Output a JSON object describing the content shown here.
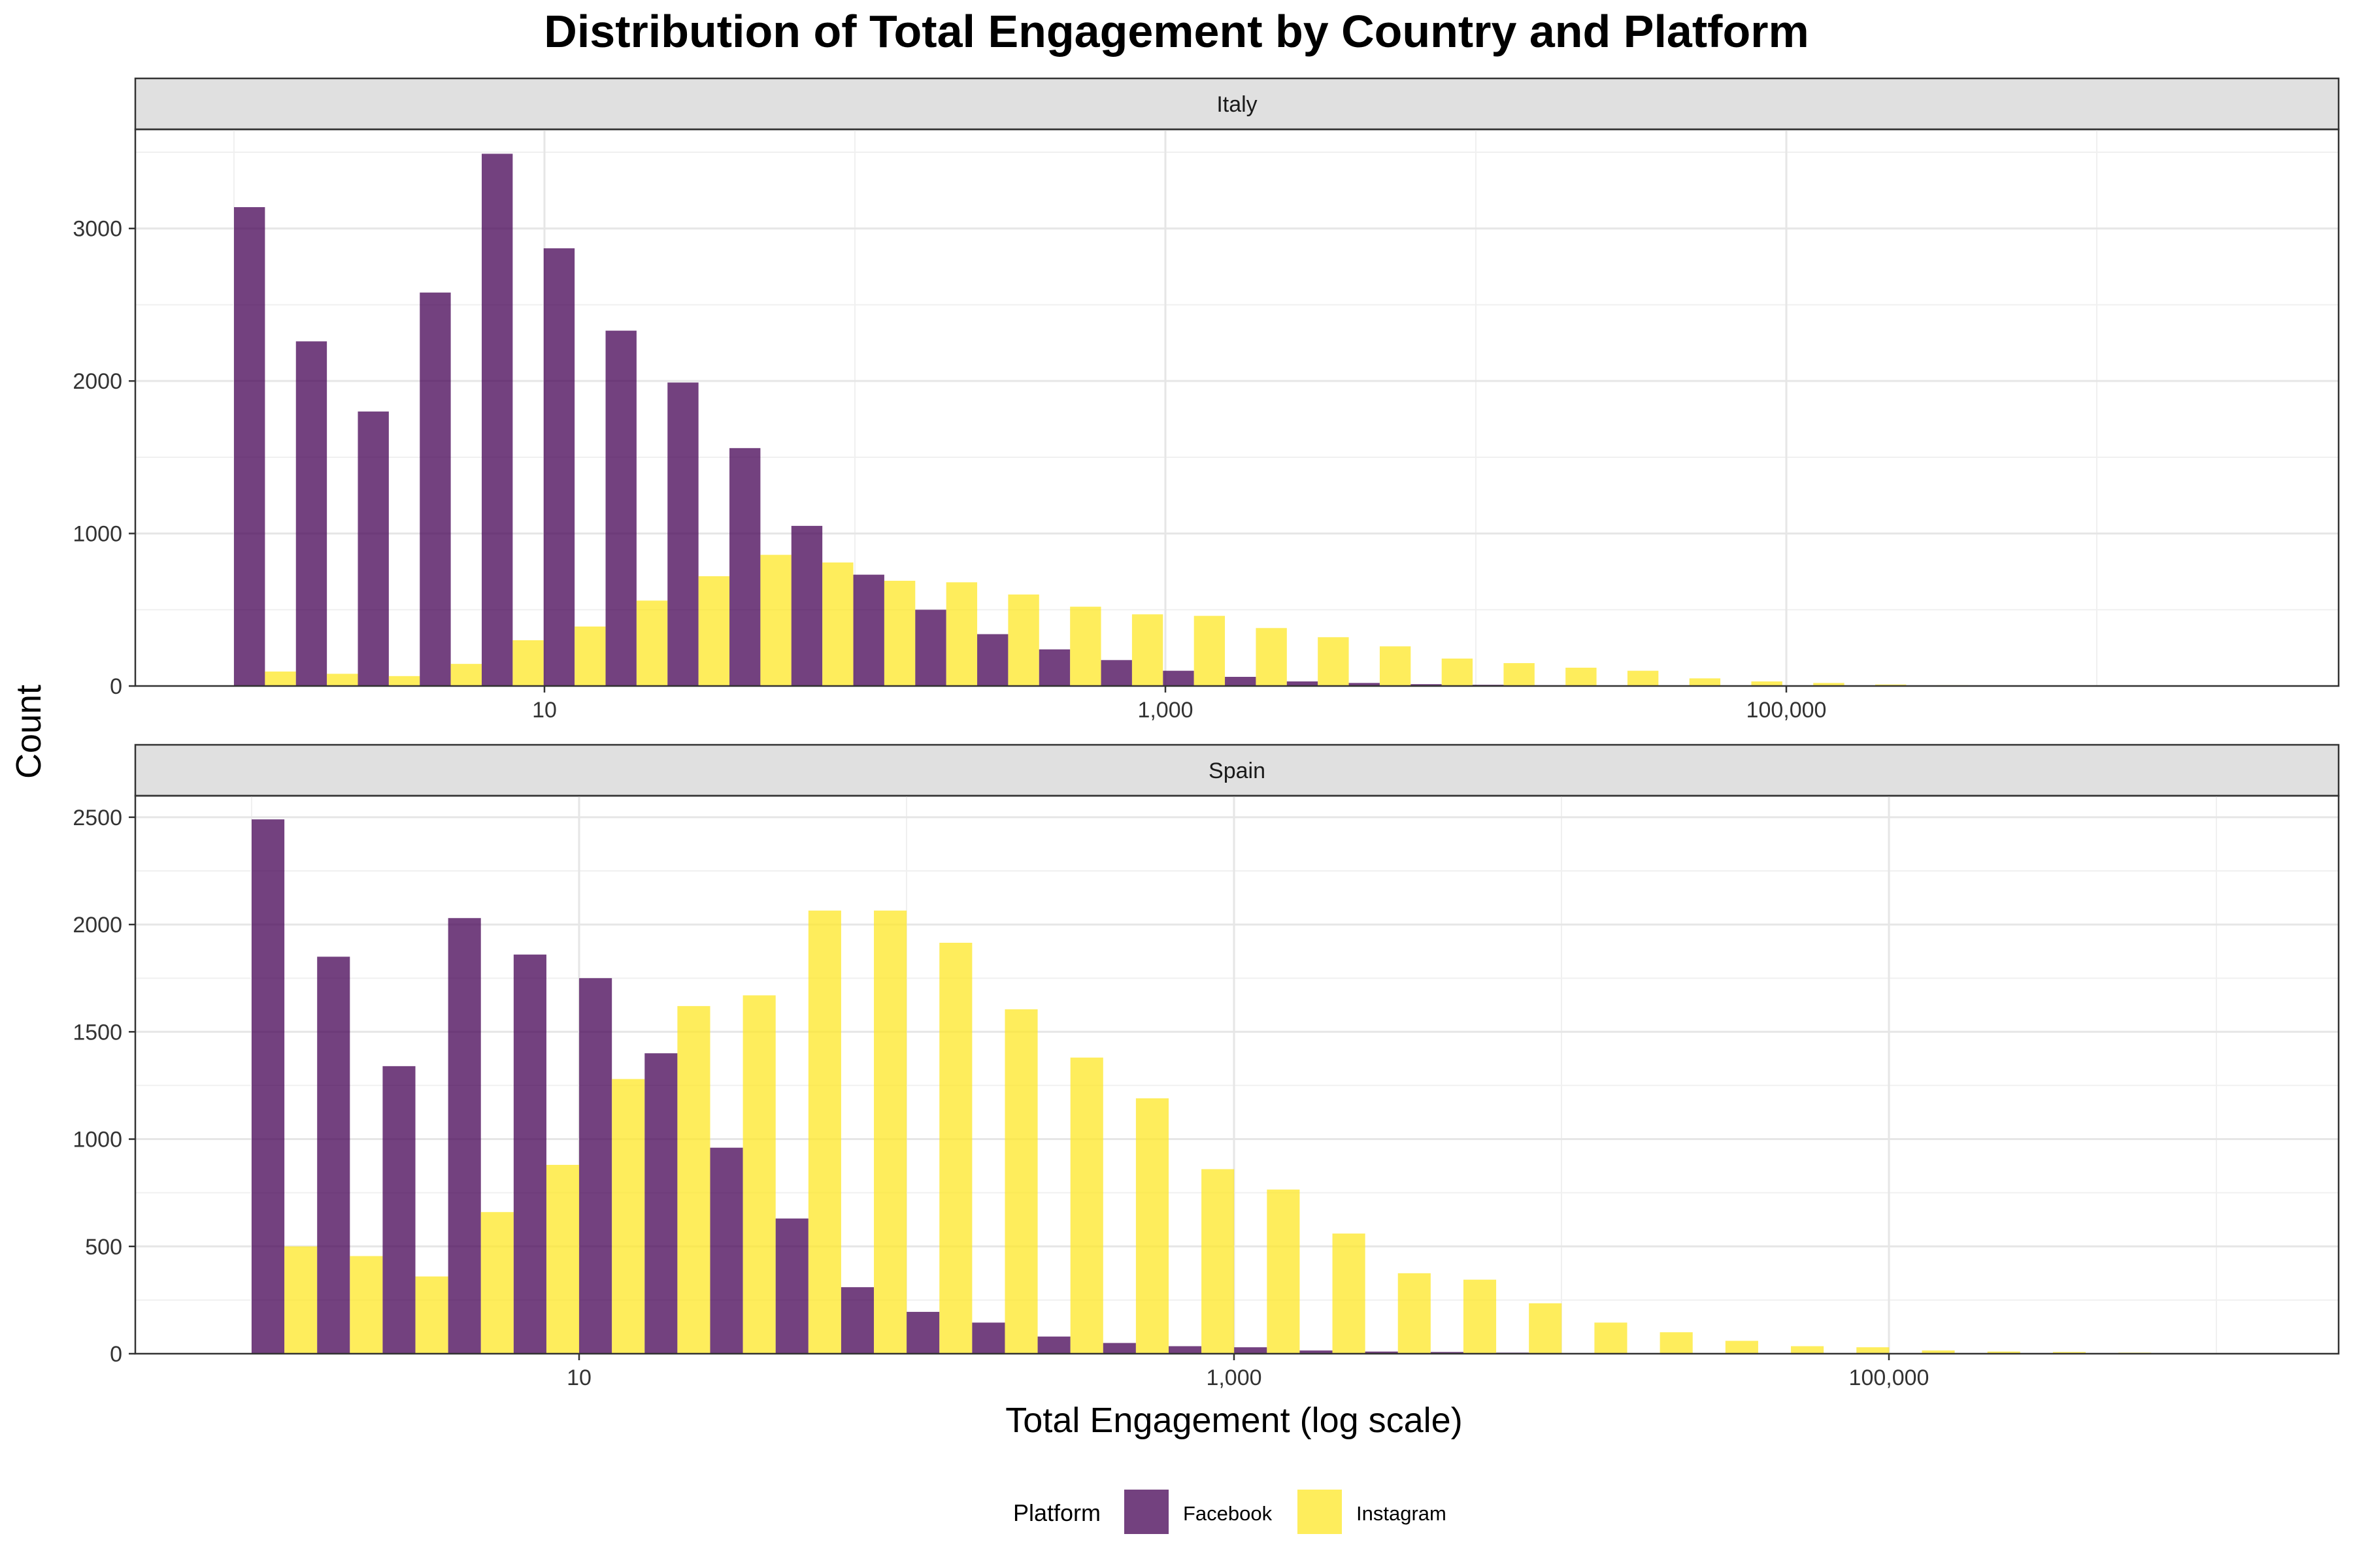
{
  "chart_data": {
    "type": "bar",
    "title": "Distribution of Total Engagement by Country and Platform",
    "xlabel": "Total Engagement (log scale)",
    "ylabel": "Count",
    "x_scale": "log10",
    "x_tick_values": [
      10,
      1000,
      100000
    ],
    "x_tick_labels": [
      "10",
      "1,000",
      "100,000"
    ],
    "legend": {
      "title": "Platform",
      "position": "bottom",
      "items": [
        {
          "name": "Facebook",
          "color": "#440154"
        },
        {
          "name": "Instagram",
          "color": "#FDE725"
        }
      ]
    },
    "series_colors": {
      "Facebook": "#440154",
      "Instagram": "#FDE725"
    },
    "bar_opacity": 0.75,
    "grid": true,
    "panels": [
      {
        "label": "Italy",
        "ylim": [
          0,
          3650
        ],
        "y_ticks": [
          0,
          1000,
          2000,
          3000
        ],
        "y_tick_labels": [
          "0",
          "1000",
          "2000",
          "3000"
        ],
        "bin_start_engagement": 1,
        "bin_ratio": 1.583,
        "series": [
          {
            "name": "Facebook",
            "values": [
              3140,
              2260,
              1800,
              2580,
              3490,
              2870,
              2330,
              1990,
              1560,
              1050,
              730,
              500,
              340,
              240,
              170,
              100,
              60,
              30,
              20,
              12,
              8,
              5,
              3,
              2,
              1,
              1,
              0,
              0,
              0,
              0
            ]
          },
          {
            "name": "Instagram",
            "values": [
              95,
              80,
              65,
              145,
              300,
              390,
              560,
              720,
              860,
              810,
              690,
              680,
              600,
              520,
              470,
              460,
              380,
              320,
              260,
              180,
              150,
              120,
              100,
              50,
              30,
              20,
              10,
              5,
              0,
              0
            ]
          }
        ]
      },
      {
        "label": "Spain",
        "ylim": [
          0,
          2600
        ],
        "y_ticks": [
          0,
          500,
          1000,
          1500,
          2000,
          2500
        ],
        "y_tick_labels": [
          "0",
          "500",
          "1000",
          "1500",
          "2000",
          "2500"
        ],
        "bin_start_engagement": 1,
        "bin_ratio": 1.585,
        "series": [
          {
            "name": "Facebook",
            "values": [
              2490,
              1850,
              1340,
              2030,
              1860,
              1750,
              1400,
              960,
              630,
              310,
              195,
              145,
              80,
              50,
              35,
              30,
              15,
              10,
              8,
              5,
              3,
              2,
              1,
              1,
              0,
              0,
              0,
              0,
              0,
              0
            ]
          },
          {
            "name": "Instagram",
            "values": [
              500,
              455,
              360,
              660,
              880,
              1280,
              1620,
              1670,
              2065,
              2065,
              1915,
              1605,
              1380,
              1190,
              860,
              765,
              560,
              375,
              345,
              235,
              145,
              100,
              60,
              35,
              30,
              15,
              10,
              8,
              5,
              3
            ]
          }
        ]
      }
    ]
  }
}
